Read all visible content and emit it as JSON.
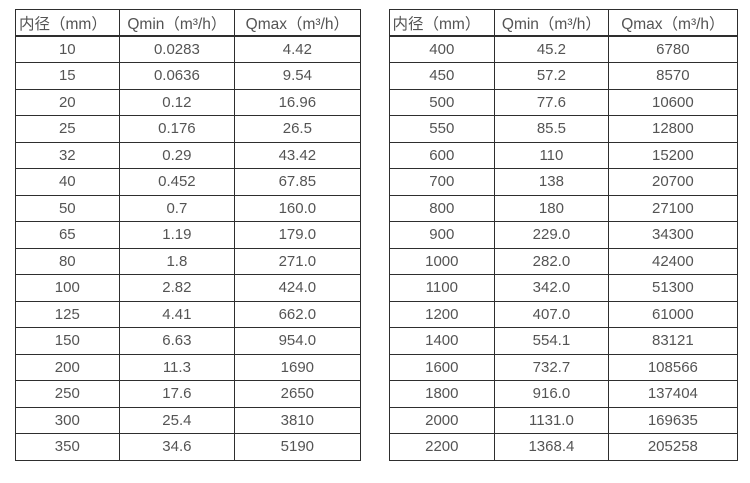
{
  "page": {
    "background": "#ffffff",
    "text_color": "#545454",
    "border_color": "#2e2e2e"
  },
  "tables": [
    {
      "name": "flow-rate-table-small-diameters",
      "headers": [
        "内径（mm）",
        "Qmin（m³/h）",
        "Qmax（m³/h）"
      ],
      "rows": [
        [
          "10",
          "0.0283",
          "4.42"
        ],
        [
          "15",
          "0.0636",
          "9.54"
        ],
        [
          "20",
          "0.12",
          "16.96"
        ],
        [
          "25",
          "0.176",
          "26.5"
        ],
        [
          "32",
          "0.29",
          "43.42"
        ],
        [
          "40",
          "0.452",
          "67.85"
        ],
        [
          "50",
          "0.7",
          "160.0"
        ],
        [
          "65",
          "1.19",
          "179.0"
        ],
        [
          "80",
          "1.8",
          "271.0"
        ],
        [
          "100",
          "2.82",
          "424.0"
        ],
        [
          "125",
          "4.41",
          "662.0"
        ],
        [
          "150",
          "6.63",
          "954.0"
        ],
        [
          "200",
          "11.3",
          "1690"
        ],
        [
          "250",
          "17.6",
          "2650"
        ],
        [
          "300",
          "25.4",
          "3810"
        ],
        [
          "350",
          "34.6",
          "5190"
        ]
      ]
    },
    {
      "name": "flow-rate-table-large-diameters",
      "headers": [
        "内径（mm）",
        "Qmin（m³/h）",
        "Qmax（m³/h）"
      ],
      "rows": [
        [
          "400",
          "45.2",
          "6780"
        ],
        [
          "450",
          "57.2",
          "8570"
        ],
        [
          "500",
          "77.6",
          "10600"
        ],
        [
          "550",
          "85.5",
          "12800"
        ],
        [
          "600",
          "110",
          "15200"
        ],
        [
          "700",
          "138",
          "20700"
        ],
        [
          "800",
          "180",
          "27100"
        ],
        [
          "900",
          "229.0",
          "34300"
        ],
        [
          "1000",
          "282.0",
          "42400"
        ],
        [
          "1100",
          "342.0",
          "51300"
        ],
        [
          "1200",
          "407.0",
          "61000"
        ],
        [
          "1400",
          "554.1",
          "83121"
        ],
        [
          "1600",
          "732.7",
          "108566"
        ],
        [
          "1800",
          "916.0",
          "137404"
        ],
        [
          "2000",
          "1131.0",
          "169635"
        ],
        [
          "2200",
          "1368.4",
          "205258"
        ]
      ]
    }
  ]
}
